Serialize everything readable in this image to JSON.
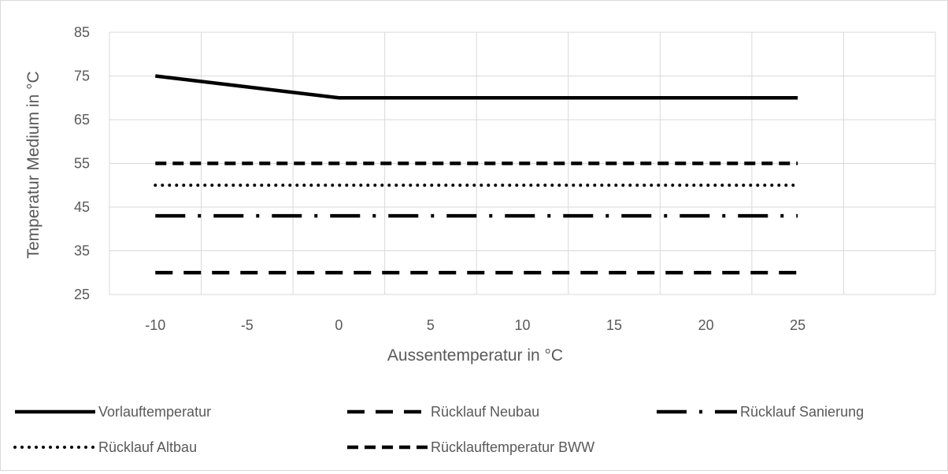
{
  "chart_data": {
    "type": "line",
    "title": "",
    "xlabel": "Aussentemperatur in °C",
    "ylabel": "Temperatur Medium in °C",
    "x": [
      -10,
      -5,
      0,
      5,
      10,
      15,
      20,
      25
    ],
    "x_ticks": [
      "-10",
      "-5",
      "0",
      "5",
      "10",
      "15",
      "20",
      "25"
    ],
    "y_ticks": [
      "25",
      "35",
      "45",
      "55",
      "65",
      "75",
      "85"
    ],
    "ylim": [
      25,
      85
    ],
    "grid": true,
    "legend_position": "bottom",
    "series": [
      {
        "name": "Vorlauftemperatur",
        "values": [
          75,
          72.5,
          70,
          70,
          70,
          70,
          70,
          70
        ],
        "dash": "solid"
      },
      {
        "name": "Rücklauf Neubau",
        "values": [
          30,
          30,
          30,
          30,
          30,
          30,
          30,
          30
        ],
        "dash": "long-dash"
      },
      {
        "name": "Rücklauf Sanierung",
        "values": [
          43,
          43,
          43,
          43,
          43,
          43,
          43,
          43
        ],
        "dash": "long-dash-dot"
      },
      {
        "name": "Rücklauf Altbau",
        "values": [
          50,
          50,
          50,
          50,
          50,
          50,
          50,
          50
        ],
        "dash": "dot"
      },
      {
        "name": "Rücklauftemperatur BWW",
        "values": [
          55,
          55,
          55,
          55,
          55,
          55,
          55,
          55
        ],
        "dash": "dash"
      }
    ],
    "colors": {
      "lines": "#000000",
      "grid": "#d9d9d9",
      "text": "#595959"
    }
  }
}
